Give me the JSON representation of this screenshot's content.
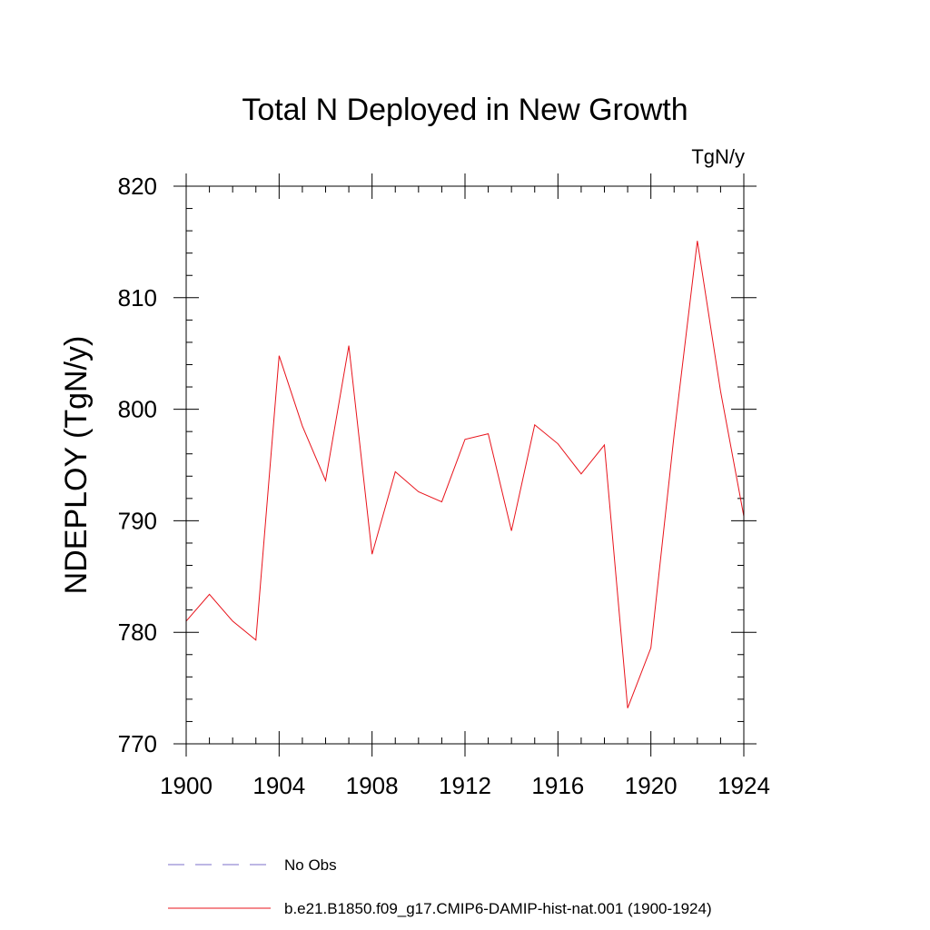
{
  "chart_data": {
    "type": "line",
    "title": "Total N Deployed in New Growth",
    "units_label": "TgN/y",
    "ylabel": "NDEPLOY  (TgN/y)",
    "xlabel": "",
    "xlim": [
      1900,
      1924
    ],
    "ylim": [
      770,
      820
    ],
    "x_ticks": [
      1900,
      1904,
      1908,
      1912,
      1916,
      1920,
      1924
    ],
    "y_ticks": [
      770,
      780,
      790,
      800,
      810,
      820
    ],
    "x_minor_step": 1,
    "y_minor_step": 2,
    "series": [
      {
        "name": "No Obs",
        "color": "#7b6fc9",
        "dash": "dashed",
        "x": [],
        "values": []
      },
      {
        "name": "b.e21.B1850.f09_g17.CMIP6-DAMIP-hist-nat.001 (1900-1924)",
        "color": "#e8131b",
        "dash": "solid",
        "x": [
          1900,
          1901,
          1902,
          1903,
          1904,
          1905,
          1906,
          1907,
          1908,
          1909,
          1910,
          1911,
          1912,
          1913,
          1914,
          1915,
          1916,
          1917,
          1918,
          1919,
          1920,
          1921,
          1922,
          1923,
          1924
        ],
        "values": [
          781.0,
          783.4,
          781.0,
          779.3,
          804.8,
          798.5,
          793.6,
          805.7,
          787.0,
          794.4,
          792.6,
          791.7,
          797.3,
          797.8,
          789.1,
          798.6,
          796.9,
          794.2,
          796.8,
          773.2,
          778.6,
          797.7,
          815.1,
          801.6,
          790.4
        ]
      }
    ],
    "legend_position": "bottom",
    "grid": false
  }
}
